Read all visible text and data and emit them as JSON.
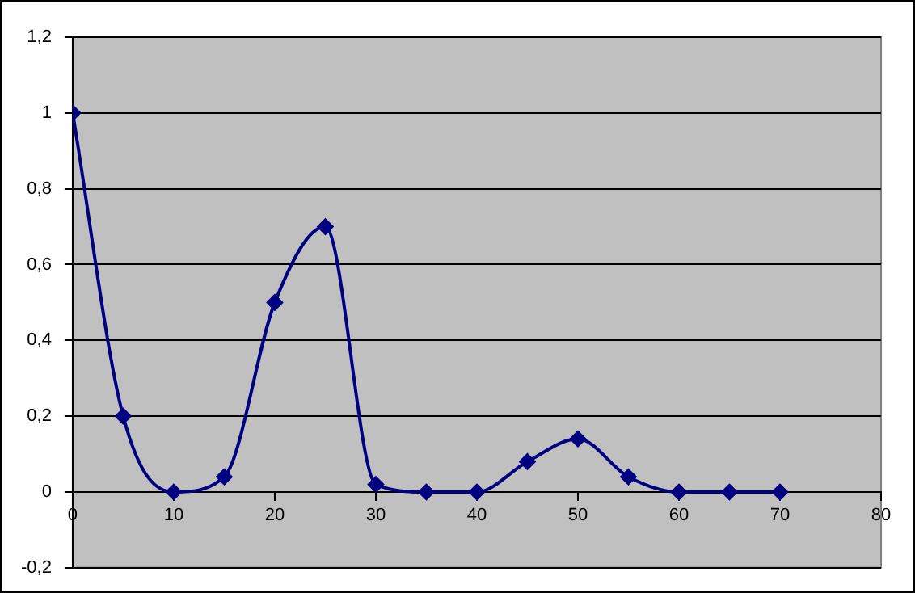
{
  "chart_data": {
    "type": "line",
    "x": [
      0,
      5,
      10,
      15,
      20,
      25,
      30,
      35,
      40,
      45,
      50,
      55,
      60,
      65,
      70
    ],
    "series": [
      {
        "color": "#000080",
        "values": [
          1,
          0.2,
          0,
          0.04,
          0.5,
          0.7,
          0.02,
          0,
          0,
          0.08,
          0.14,
          0.04,
          0,
          0,
          0
        ]
      }
    ],
    "xlim": [
      0,
      80
    ],
    "xticks": [
      0,
      10,
      20,
      30,
      40,
      50,
      60,
      70,
      80
    ],
    "ylim": [
      -0.2,
      1.2
    ],
    "yticks": [
      {
        "value": -0.2,
        "label": "-0,2"
      },
      0,
      {
        "value": 0.2,
        "label": "0,2"
      },
      {
        "value": 0.4,
        "label": "0,4"
      },
      {
        "value": 0.6,
        "label": "0,6"
      },
      {
        "value": 0.8,
        "label": "0,8"
      },
      1,
      {
        "value": 1.2,
        "label": "1,2"
      }
    ],
    "grid": "y",
    "legend": false,
    "marker": "diamond",
    "line_style": "solid"
  }
}
